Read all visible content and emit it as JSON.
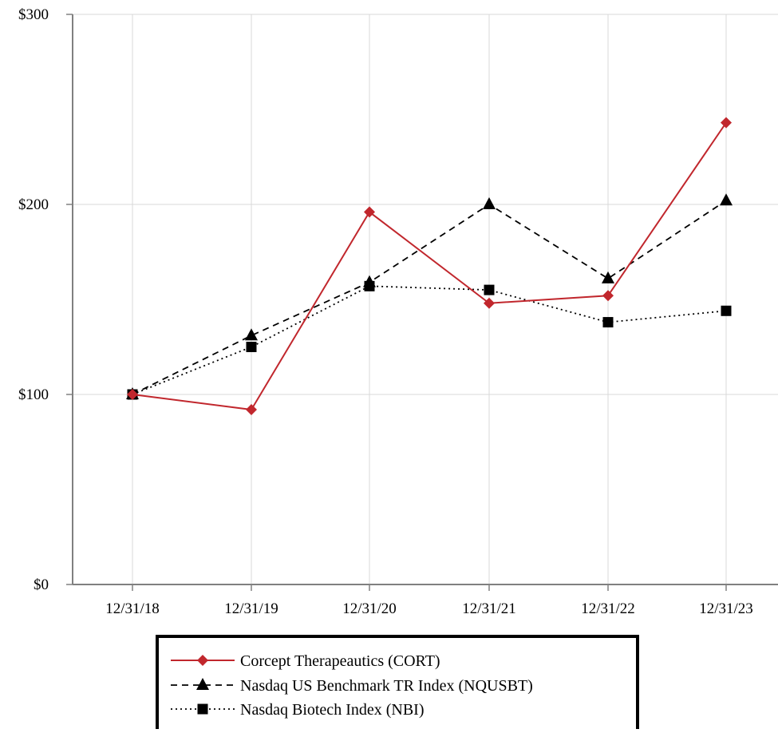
{
  "chart_data": {
    "type": "line",
    "categories": [
      "12/31/18",
      "12/31/19",
      "12/31/20",
      "12/31/21",
      "12/31/22",
      "12/31/23"
    ],
    "yticks": [
      0,
      100,
      200,
      300
    ],
    "ytick_labels": [
      "$0",
      "$100",
      "$200",
      "$300"
    ],
    "ylim": [
      0,
      300
    ],
    "grid": true,
    "legend_position": "bottom-center",
    "series": [
      {
        "name": "Corcept Therapeautics (CORT)",
        "values": [
          100,
          92,
          196,
          148,
          152,
          243
        ],
        "color": "#c1272d",
        "line_style": "solid",
        "marker": "diamond"
      },
      {
        "name": "Nasdaq US Benchmark TR Index (NQUSBT)",
        "values": [
          100,
          131,
          159,
          200,
          161,
          202
        ],
        "color": "#000000",
        "line_style": "dashed",
        "marker": "triangle"
      },
      {
        "name": "Nasdaq Biotech Index (NBI)",
        "values": [
          100,
          125,
          157,
          155,
          138,
          144
        ],
        "color": "#000000",
        "line_style": "dotted",
        "marker": "square"
      }
    ]
  }
}
